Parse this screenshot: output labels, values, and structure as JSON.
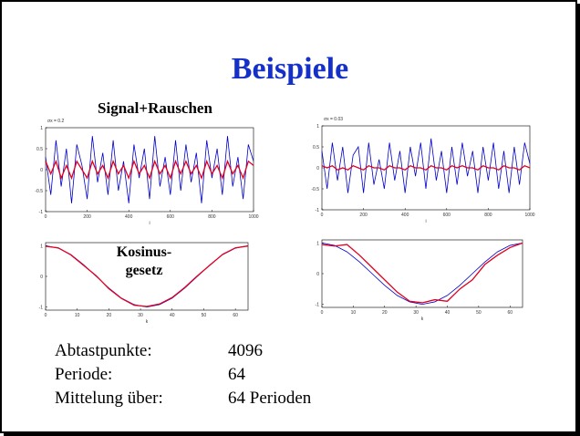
{
  "title": "Beispiele",
  "signal_label": "Signal+Rauschen",
  "cosine_label": [
    "Kosinus-",
    "gesetz"
  ],
  "charts": [
    {
      "type": "line",
      "note": "σx = 0.2",
      "x_label": "i",
      "xlim": [
        0,
        1000
      ],
      "ylim": [
        -1,
        1
      ],
      "xticks": [
        0,
        200,
        400,
        600,
        800,
        1000
      ],
      "yticks": [
        -1,
        -0.5,
        0,
        0.5,
        1
      ],
      "x": [
        0,
        25,
        50,
        75,
        100,
        125,
        150,
        175,
        200,
        225,
        250,
        275,
        300,
        325,
        350,
        375,
        400,
        425,
        450,
        475,
        500,
        525,
        550,
        575,
        600,
        625,
        650,
        675,
        700,
        725,
        750,
        775,
        800,
        825,
        850,
        875,
        900,
        925,
        950,
        975,
        1000
      ],
      "series": [
        {
          "color": "#0000cc",
          "values": [
            0.3,
            -0.6,
            0.7,
            -0.4,
            0.5,
            -0.8,
            0.6,
            0.1,
            -0.7,
            0.8,
            -0.3,
            0.4,
            -0.6,
            0.7,
            -0.5,
            0.2,
            -0.8,
            0.6,
            -0.2,
            0.5,
            -0.7,
            0.8,
            -0.4,
            0.3,
            -0.6,
            0.7,
            -0.5,
            0.6,
            -0.3,
            0.4,
            -0.8,
            0.7,
            -0.2,
            0.5,
            -0.6,
            0.8,
            -0.4,
            0.3,
            -0.7,
            0.6,
            0.2
          ]
        },
        {
          "color": "#e00020",
          "values": [
            0.2,
            -0.1,
            0.2,
            -0.2,
            0.1,
            -0.2,
            0.2,
            0,
            -0.2,
            0.2,
            -0.1,
            0.1,
            -0.2,
            0.2,
            -0.1,
            0.1,
            -0.2,
            0.2,
            -0.1,
            0.1,
            -0.2,
            0.2,
            -0.1,
            0.1,
            -0.2,
            0.2,
            -0.1,
            0.2,
            -0.1,
            0.1,
            -0.2,
            0.2,
            -0.1,
            0.1,
            -0.2,
            0.2,
            -0.1,
            0.1,
            -0.2,
            0.2,
            0.1
          ]
        }
      ]
    },
    {
      "type": "line",
      "note": "σx = 0.03",
      "x_label": "i",
      "xlim": [
        0,
        1000
      ],
      "ylim": [
        -1,
        1
      ],
      "xticks": [
        0,
        200,
        400,
        600,
        800,
        1000
      ],
      "yticks": [
        -1,
        -0.5,
        0,
        0.5,
        1
      ],
      "x": [
        0,
        25,
        50,
        75,
        100,
        125,
        150,
        175,
        200,
        225,
        250,
        275,
        300,
        325,
        350,
        375,
        400,
        425,
        450,
        475,
        500,
        525,
        550,
        575,
        600,
        625,
        650,
        675,
        700,
        725,
        750,
        775,
        800,
        825,
        850,
        875,
        900,
        925,
        950,
        975,
        1000
      ],
      "series": [
        {
          "color": "#0000cc",
          "values": [
            0.4,
            -0.5,
            0.6,
            -0.3,
            0.5,
            -0.6,
            0.3,
            0.5,
            -0.6,
            0.6,
            -0.4,
            0.2,
            -0.5,
            0.6,
            -0.3,
            0.4,
            -0.6,
            0.5,
            -0.2,
            0.6,
            -0.5,
            0.7,
            -0.3,
            0.4,
            -0.6,
            0.5,
            -0.4,
            0.6,
            -0.2,
            0.4,
            -0.6,
            0.5,
            -0.3,
            0.6,
            -0.5,
            0.4,
            -0.6,
            0.5,
            -0.4,
            0.6,
            0.1
          ]
        },
        {
          "color": "#e00020",
          "values": [
            0.05,
            0,
            0.05,
            -0.05,
            0,
            -0.05,
            0.05,
            0,
            -0.05,
            0.05,
            0,
            0,
            -0.05,
            0.05,
            0,
            0,
            -0.05,
            0.05,
            0,
            0,
            -0.05,
            0.05,
            0,
            0,
            -0.05,
            0.05,
            0,
            0.05,
            0,
            0,
            -0.05,
            0.05,
            0,
            0,
            -0.05,
            0.05,
            0,
            0,
            -0.05,
            0.05,
            0
          ]
        }
      ]
    },
    {
      "type": "line",
      "x_label": "k",
      "xlim": [
        0,
        64
      ],
      "ylim": [
        -1.1,
        1.1
      ],
      "xticks": [
        0,
        10,
        20,
        30,
        40,
        50,
        60
      ],
      "yticks": [
        -1,
        0,
        1
      ],
      "x": [
        0,
        4,
        8,
        12,
        16,
        20,
        24,
        28,
        32,
        36,
        40,
        44,
        48,
        52,
        56,
        60,
        64
      ],
      "series": [
        {
          "color": "#0000cc",
          "values": [
            1,
            0.92,
            0.71,
            0.38,
            0,
            -0.38,
            -0.71,
            -0.92,
            -1,
            -0.92,
            -0.71,
            -0.38,
            0,
            0.38,
            0.71,
            0.92,
            1
          ]
        },
        {
          "color": "#e00020",
          "values": [
            0.98,
            0.93,
            0.7,
            0.36,
            0.02,
            -0.4,
            -0.72,
            -0.94,
            -0.98,
            -0.9,
            -0.69,
            -0.36,
            0.02,
            0.37,
            0.72,
            0.93,
            0.99
          ]
        }
      ]
    },
    {
      "type": "line",
      "x_label": "k",
      "xlim": [
        0,
        64
      ],
      "ylim": [
        -1.1,
        1.1
      ],
      "xticks": [
        0,
        10,
        20,
        30,
        40,
        50,
        60
      ],
      "yticks": [
        -1,
        0,
        1
      ],
      "x": [
        0,
        4,
        8,
        12,
        16,
        20,
        24,
        28,
        32,
        36,
        40,
        44,
        48,
        52,
        56,
        60,
        64
      ],
      "series": [
        {
          "color": "#0000cc",
          "values": [
            1,
            0.92,
            0.71,
            0.38,
            0,
            -0.38,
            -0.71,
            -0.92,
            -1,
            -0.92,
            -0.71,
            -0.38,
            0,
            0.38,
            0.71,
            0.92,
            1
          ]
        },
        {
          "color": "#e00020",
          "values": [
            0.95,
            0.9,
            0.95,
            0.6,
            0.2,
            -0.2,
            -0.6,
            -0.9,
            -0.95,
            -0.85,
            -0.9,
            -0.5,
            -0.2,
            0.3,
            0.6,
            0.85,
            1
          ]
        }
      ]
    }
  ],
  "params": [
    [
      "Abtastpunkte:",
      "4096"
    ],
    [
      "Periode:",
      "64"
    ],
    [
      "Mittelung über:",
      "64 Perioden"
    ]
  ]
}
